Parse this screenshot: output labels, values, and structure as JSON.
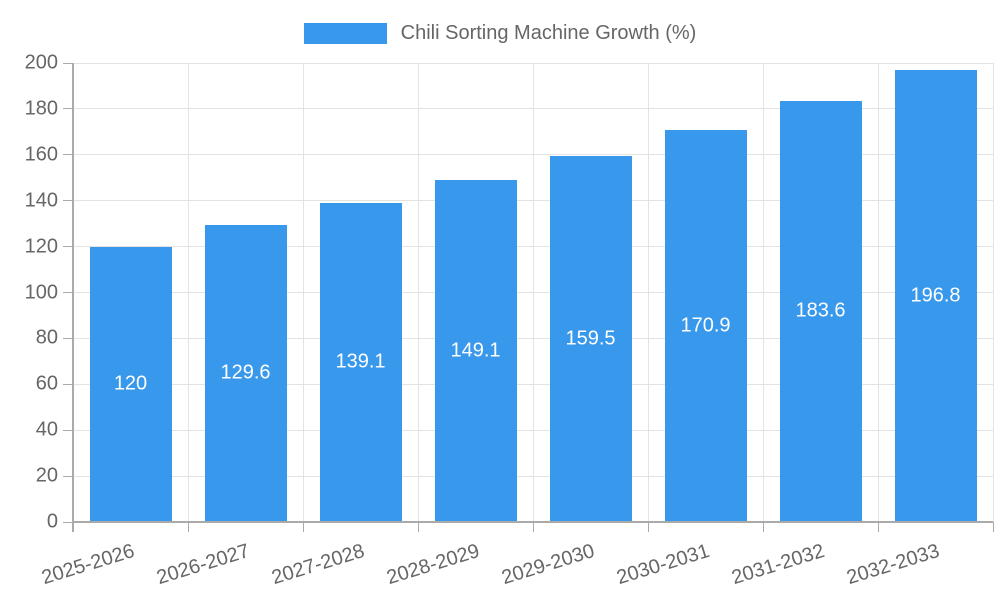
{
  "chart_data": {
    "type": "bar",
    "title": "Chili Sorting Machine Growth (%)",
    "legend": {
      "position": "top-center",
      "series_label": "Chili Sorting Machine Growth (%)"
    },
    "categories": [
      "2025-2026",
      "2026-2027",
      "2027-2028",
      "2028-2029",
      "2029-2030",
      "2030-2031",
      "2031-2032",
      "2032-2033"
    ],
    "series": [
      {
        "name": "Chili Sorting Machine Growth (%)",
        "values": [
          120,
          129.6,
          139.1,
          149.1,
          159.5,
          170.9,
          183.6,
          196.8
        ],
        "value_labels": [
          "120",
          "129.6",
          "139.1",
          "149.1",
          "159.5",
          "170.9",
          "183.6",
          "196.8"
        ]
      }
    ],
    "xlabel": "",
    "ylabel": "",
    "ylim": [
      0,
      200
    ],
    "ytick_step": 20,
    "ytick_labels": [
      "0",
      "20",
      "40",
      "60",
      "80",
      "100",
      "120",
      "140",
      "160",
      "180",
      "200"
    ],
    "grid": "on",
    "colors": {
      "bar": "#3898ec",
      "bar_value_label": "#ffffff",
      "gridline": "#e3e3e3",
      "axis": "#aaaaaa",
      "axis_text": "#666666"
    }
  }
}
